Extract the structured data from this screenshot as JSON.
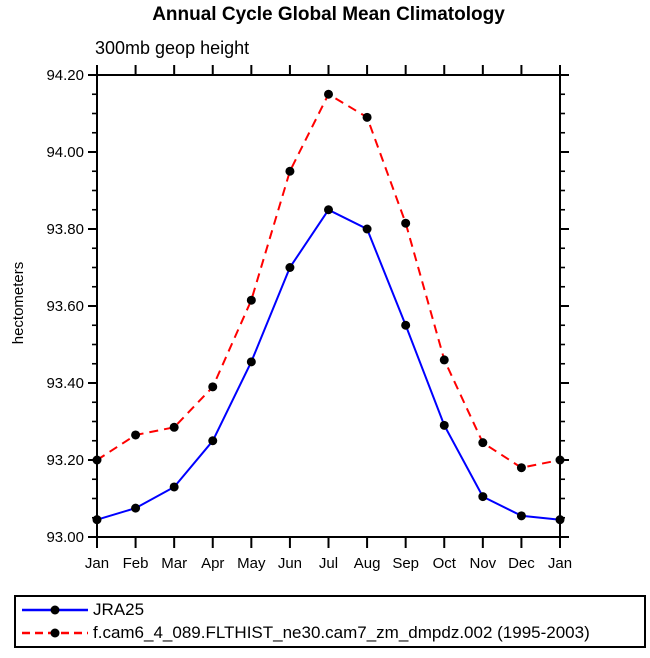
{
  "title": "Annual Cycle Global Mean Climatology",
  "subtitle": "300mb geop height",
  "chart_data": {
    "type": "line",
    "title": "Annual Cycle Global Mean Climatology",
    "subtitle": "300mb geop height",
    "xlabel": "",
    "ylabel": "hectometers",
    "x_categories": [
      "Jan",
      "Feb",
      "Mar",
      "Apr",
      "May",
      "Jun",
      "Jul",
      "Aug",
      "Sep",
      "Oct",
      "Nov",
      "Dec",
      "Jan"
    ],
    "ylim": [
      93.0,
      94.2
    ],
    "ytick_interval": 0.2,
    "yminor_interval": 0.05,
    "ytick_labels": [
      "93.00",
      "93.20",
      "93.40",
      "93.60",
      "93.80",
      "94.00",
      "94.20"
    ],
    "grid": false,
    "legend_position": "bottom",
    "frame_color": "#000000",
    "marker_color": "#000000",
    "series": [
      {
        "name": "JRA25",
        "color": "#0000ff",
        "line_style": "solid",
        "marker": "filled-circle",
        "values": [
          93.045,
          93.075,
          93.13,
          93.25,
          93.455,
          93.7,
          93.85,
          93.8,
          93.55,
          93.29,
          93.105,
          93.055,
          93.045
        ]
      },
      {
        "name": "f.cam6_4_089.FLTHIST_ne30.cam7_zm_dmpdz.002 (1995-2003)",
        "color": "#ff0000",
        "line_style": "dashed",
        "marker": "filled-circle",
        "values": [
          93.2,
          93.265,
          93.285,
          93.39,
          93.615,
          93.95,
          94.15,
          94.09,
          93.815,
          93.46,
          93.245,
          93.18,
          93.2
        ]
      }
    ]
  }
}
